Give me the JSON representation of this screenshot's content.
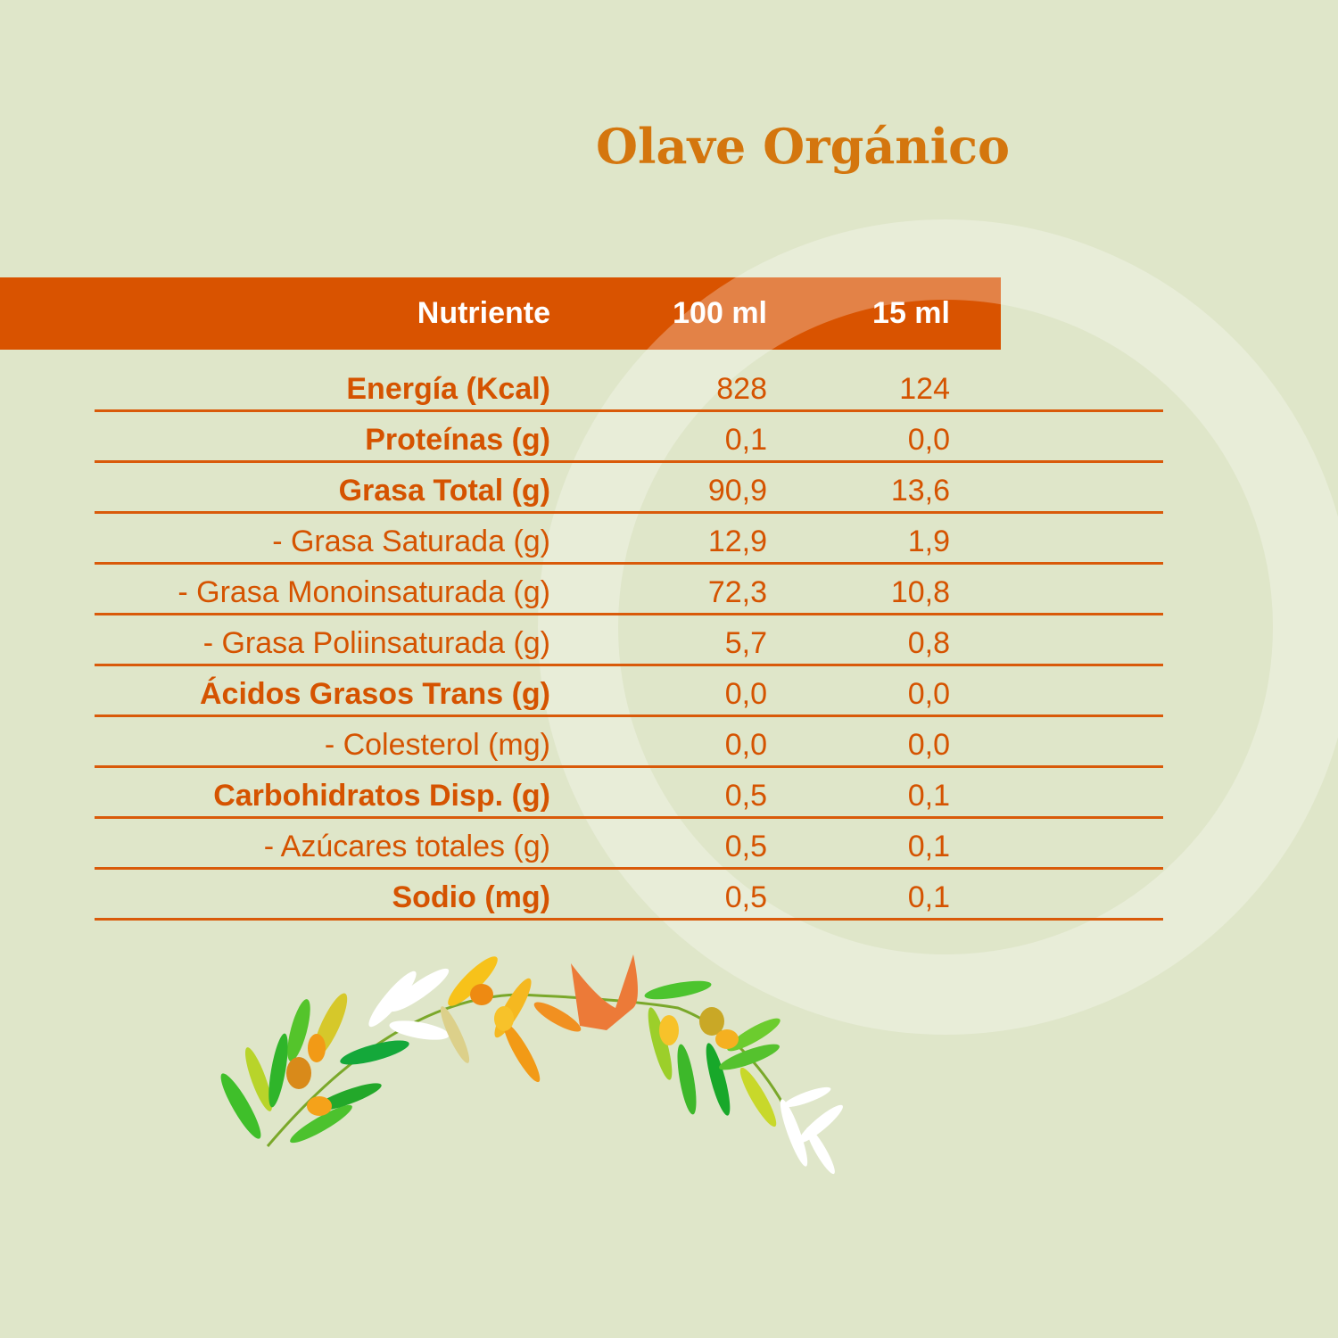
{
  "title": "Olave Orgánico",
  "colors": {
    "background": "#dfe6c9",
    "header": "#d95300",
    "accent": "#d55300",
    "title": "#d4760e"
  },
  "table": {
    "headers": [
      "Nutriente",
      "100 ml",
      "15 ml"
    ],
    "rows": [
      {
        "label": "Energía (Kcal)",
        "v100": "828",
        "v15": "124",
        "bold": true
      },
      {
        "label": "Proteínas (g)",
        "v100": "0,1",
        "v15": "0,0",
        "bold": true
      },
      {
        "label": "Grasa Total (g)",
        "v100": "90,9",
        "v15": "13,6",
        "bold": true
      },
      {
        "label": "- Grasa Saturada (g)",
        "v100": "12,9",
        "v15": "1,9",
        "bold": false
      },
      {
        "label": "- Grasa Monoinsaturada (g)",
        "v100": "72,3",
        "v15": "10,8",
        "bold": false
      },
      {
        "label": "- Grasa Poliinsaturada (g)",
        "v100": "5,7",
        "v15": "0,8",
        "bold": false
      },
      {
        "label": "Ácidos Grasos Trans (g)",
        "v100": "0,0",
        "v15": "0,0",
        "bold": true
      },
      {
        "label": "- Colesterol (mg)",
        "v100": "0,0",
        "v15": "0,0",
        "bold": false
      },
      {
        "label": "Carbohidratos Disp. (g)",
        "v100": "0,5",
        "v15": "0,1",
        "bold": true
      },
      {
        "label": "- Azúcares totales (g)",
        "v100": "0,5",
        "v15": "0,1",
        "bold": false
      },
      {
        "label": "Sodio (mg)",
        "v100": "0,5",
        "v15": "0,1",
        "bold": true
      }
    ]
  }
}
